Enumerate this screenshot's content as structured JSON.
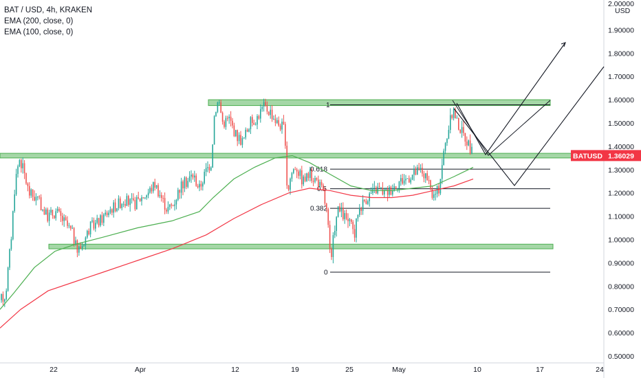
{
  "header": {
    "symbol_line": "BAT / USD, 4h, KRAKEN",
    "indicator_1": "EMA (200, close, 0)",
    "indicator_2": "EMA (100, close, 0)"
  },
  "price_badge": {
    "ticker": "BATUSD",
    "price": "1.36029",
    "color": "#f23645"
  },
  "chart_data": {
    "type": "candlestick",
    "y_axis": {
      "position": "right",
      "top_label": "2.00000",
      "currency": "USD",
      "ticks": [
        "1.90000",
        "1.80000",
        "1.70000",
        "1.60000",
        "1.50000",
        "1.40000",
        "1.30000",
        "1.20000",
        "1.10000",
        "1.00000",
        "0.90000",
        "0.80000",
        "0.70000",
        "0.60000",
        "0.50000"
      ],
      "range": [
        0.49,
        2.0
      ]
    },
    "x_axis": {
      "ticks": [
        "22",
        "Apr",
        "12",
        "19",
        "25",
        "May",
        "10",
        "17",
        "24"
      ]
    },
    "candle_colors": {
      "up": "#26a69a",
      "down": "#ef5350"
    },
    "ema_200": {
      "color": "#f23645"
    },
    "ema_100": {
      "color": "#4caf50"
    },
    "zones": [
      {
        "name": "resistance-zone",
        "low": 1.575,
        "high": 1.6,
        "color": "#4caf50"
      },
      {
        "name": "mid-zone",
        "low": 1.35,
        "high": 1.37,
        "color": "#4caf50"
      },
      {
        "name": "support-zone",
        "low": 0.96,
        "high": 0.98,
        "color": "#4caf50"
      }
    ],
    "fib_levels": [
      {
        "label": "1",
        "value": 1.578
      },
      {
        "label": "0.618",
        "value": 1.302
      },
      {
        "label": "0.5",
        "value": 1.218
      },
      {
        "label": "0.382",
        "value": 1.134
      },
      {
        "label": "0",
        "value": 0.86
      }
    ]
  }
}
